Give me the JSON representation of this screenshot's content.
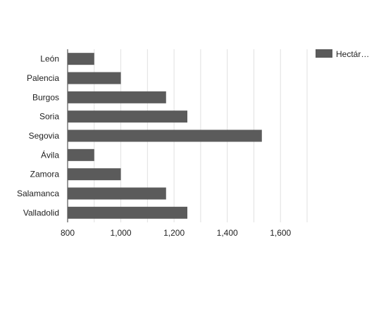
{
  "chart_data": {
    "type": "bar",
    "orientation": "horizontal",
    "title": "",
    "xlabel": "",
    "ylabel": "",
    "categories": [
      "León",
      "Palencia",
      "Burgos",
      "Soria",
      "Segovia",
      "Ávila",
      "Zamora",
      "Salamanca",
      "Valladolid"
    ],
    "series": [
      {
        "name": "Hectár…",
        "values": [
          900,
          1000,
          1170,
          1250,
          1530,
          900,
          1000,
          1170,
          1250
        ]
      }
    ],
    "xlim": [
      800,
      1700
    ],
    "xticks": [
      {
        "value": 800,
        "label": "800"
      },
      {
        "value": 1000,
        "label": "1,000"
      },
      {
        "value": 1200,
        "label": "1,200"
      },
      {
        "value": 1400,
        "label": "1,400"
      },
      {
        "value": 1600,
        "label": "1,600"
      }
    ],
    "gridlines": [
      900,
      1000,
      1100,
      1200,
      1300,
      1400,
      1500,
      1600,
      1700
    ],
    "grid": true,
    "legend_position": "top-right",
    "colors": {
      "bar": "#5b5b5b",
      "grid": "#e0e0e0",
      "axis": "#333333",
      "text": "#222222"
    }
  }
}
